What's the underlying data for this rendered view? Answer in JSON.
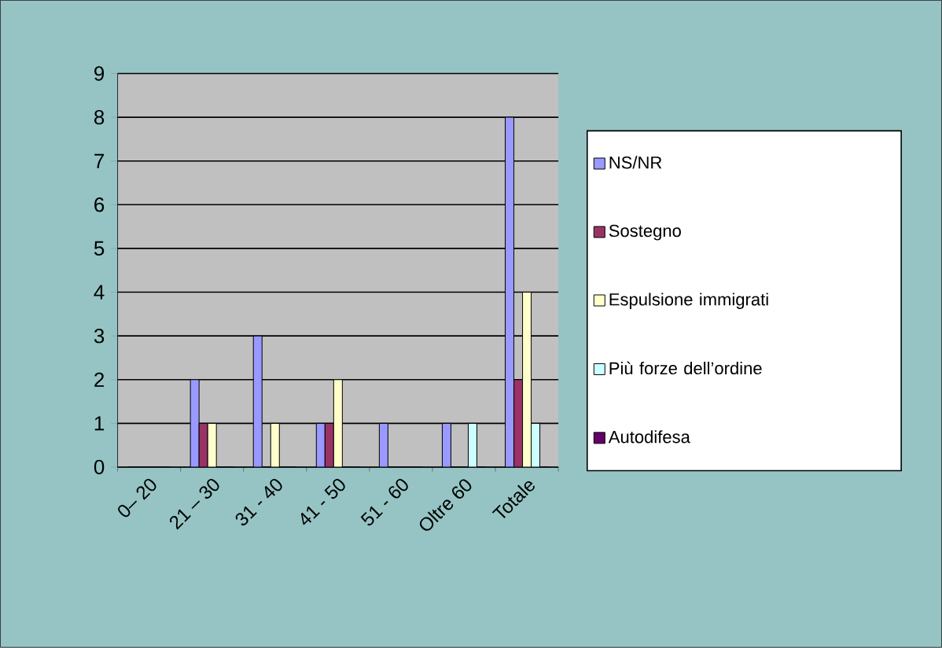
{
  "chart_data": {
    "type": "bar",
    "categories": [
      "0– 20",
      "21 – 30",
      "31 - 40",
      "41 - 50",
      "51 - 60",
      "Oltre 60",
      "Totale"
    ],
    "series": [
      {
        "name": "NS/NR",
        "color": "#9999ff",
        "values": [
          0,
          2,
          3,
          1,
          1,
          1,
          8
        ]
      },
      {
        "name": "Sostegno",
        "color": "#993366",
        "values": [
          0,
          1,
          0,
          1,
          0,
          0,
          2
        ]
      },
      {
        "name": "Espulsione immigrati",
        "color": "#ffffcc",
        "values": [
          0,
          1,
          1,
          2,
          0,
          0,
          4
        ]
      },
      {
        "name": "Più forze dell’ordine",
        "color": "#ccffff",
        "values": [
          0,
          0,
          0,
          0,
          0,
          1,
          1
        ]
      },
      {
        "name": "Autodifesa",
        "color": "#660066",
        "values": [
          0,
          0,
          0,
          0,
          0,
          0,
          0
        ]
      }
    ],
    "ylim": [
      0,
      9
    ],
    "yticks": [
      0,
      1,
      2,
      3,
      4,
      5,
      6,
      7,
      8,
      9
    ],
    "grid": "y",
    "legend": "right"
  }
}
